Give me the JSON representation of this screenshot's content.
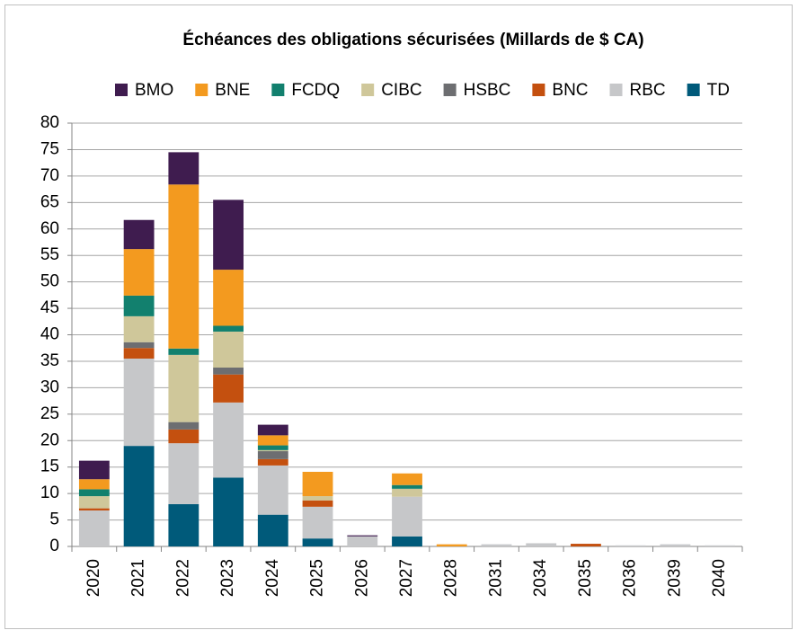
{
  "chart_data": {
    "type": "stacked_bar",
    "title": "Échéances des obligations sécurisées (Millards de $ CA)",
    "categories": [
      "2020",
      "2021",
      "2022",
      "2023",
      "2024",
      "2025",
      "2026",
      "2027",
      "2028",
      "2031",
      "2034",
      "2035",
      "2036",
      "2039",
      "2040"
    ],
    "series": [
      {
        "name": "BMO",
        "color": "#3f1c4f",
        "values": [
          3.5,
          5.5,
          6.1,
          13.2,
          2,
          0,
          0.2,
          0,
          0,
          0,
          0,
          0,
          0,
          0,
          0
        ]
      },
      {
        "name": "BNE",
        "color": "#f39a1f",
        "values": [
          1.9,
          8.8,
          31,
          10.6,
          1.9,
          4.6,
          0,
          2.2,
          0.4,
          0,
          0,
          0,
          0,
          0,
          0
        ]
      },
      {
        "name": "FCDQ",
        "color": "#12806e",
        "values": [
          1.3,
          3.9,
          1.2,
          1.1,
          0.9,
          0,
          0,
          0.7,
          0,
          0,
          0,
          0,
          0,
          0,
          0
        ]
      },
      {
        "name": "CIBC",
        "color": "#cfc79a",
        "values": [
          2.3,
          4.9,
          12.7,
          6.8,
          0.2,
          0.8,
          0,
          1.5,
          0,
          0,
          0,
          0,
          0,
          0,
          0
        ]
      },
      {
        "name": "HSBC",
        "color": "#6d6e71",
        "values": [
          0,
          1.1,
          1.4,
          1.3,
          1.5,
          0,
          0,
          0,
          0,
          0,
          0,
          0,
          0,
          0,
          0
        ]
      },
      {
        "name": "BNC",
        "color": "#c4500f",
        "values": [
          0.4,
          2,
          2.6,
          5.3,
          1.2,
          1.2,
          0,
          0,
          0,
          0,
          0,
          0.5,
          0,
          0,
          0
        ]
      },
      {
        "name": "RBC",
        "color": "#c6c7c9",
        "values": [
          6.8,
          16.5,
          11.5,
          14.2,
          9.3,
          6,
          1.9,
          7.5,
          0,
          0.4,
          0.6,
          0,
          0.2,
          0.4,
          0.2
        ]
      },
      {
        "name": "TD",
        "color": "#005a7a",
        "values": [
          0,
          19,
          8,
          13,
          6,
          1.5,
          0,
          1.9,
          0,
          0,
          0,
          0,
          0,
          0,
          0
        ]
      }
    ],
    "ylim": [
      0,
      80
    ],
    "yticks": [
      0,
      5,
      10,
      15,
      20,
      25,
      30,
      35,
      40,
      45,
      50,
      55,
      60,
      65,
      70,
      75,
      80
    ],
    "grid": true,
    "legend": "top"
  }
}
